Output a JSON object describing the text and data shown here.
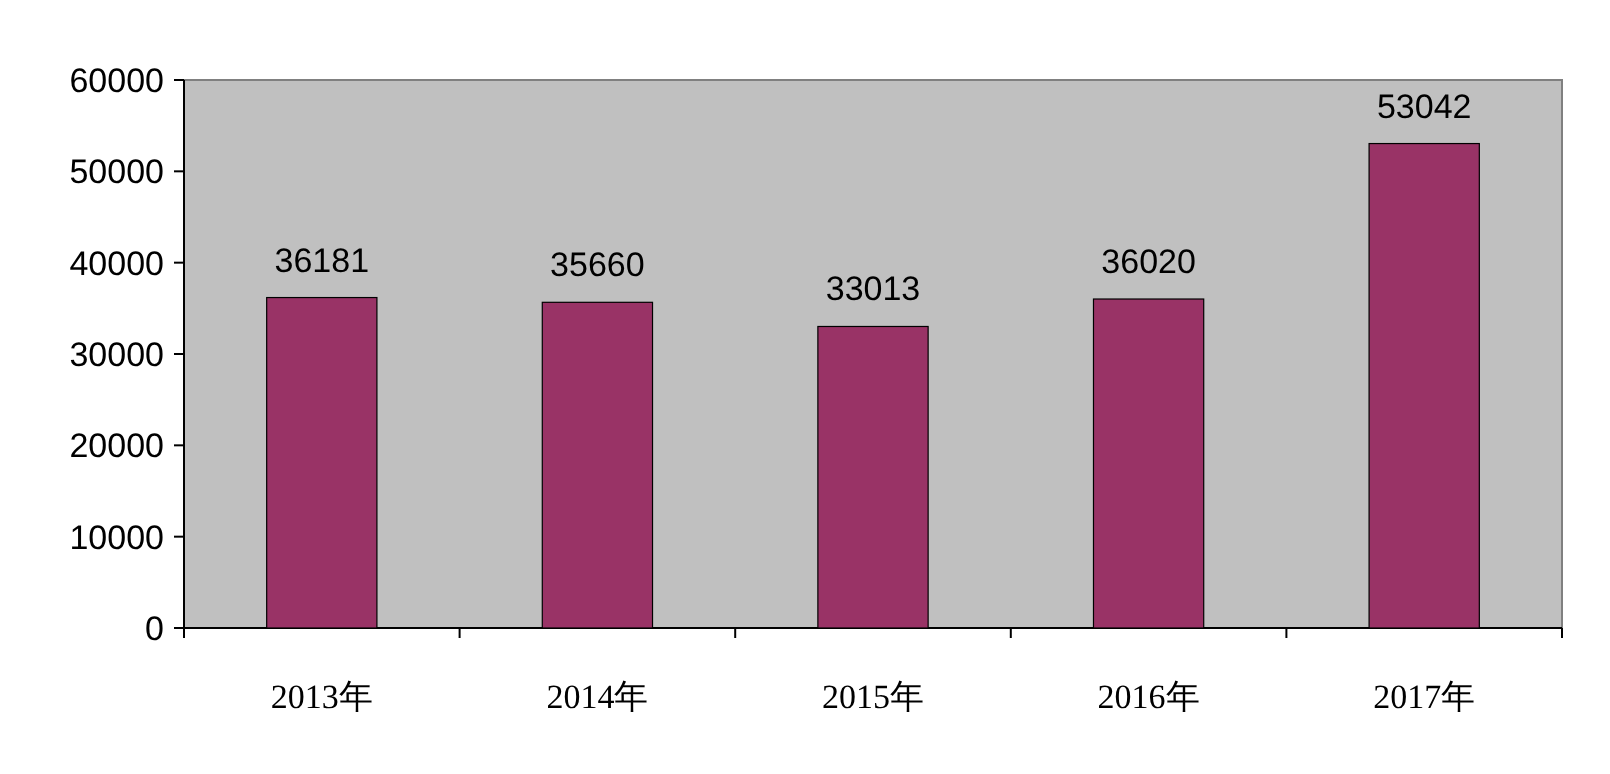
{
  "chart_data": {
    "type": "bar",
    "categories": [
      "2013年",
      "2014年",
      "2015年",
      "2016年",
      "2017年"
    ],
    "values": [
      36181,
      35660,
      33013,
      36020,
      53042
    ],
    "color": "#993366",
    "ylim": [
      0,
      60000
    ],
    "yticks": [
      0,
      10000,
      20000,
      30000,
      40000,
      50000,
      60000
    ],
    "data_labels": true,
    "grid": false
  }
}
